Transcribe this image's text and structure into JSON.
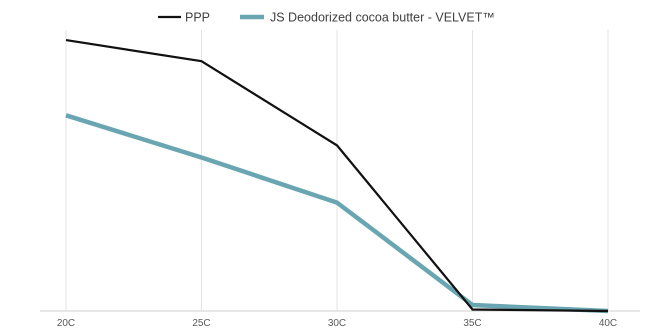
{
  "chart_data": {
    "type": "line",
    "categories": [
      "20C",
      "25C",
      "30C",
      "35C",
      "40C"
    ],
    "ylim": [
      0,
      100
    ],
    "grid": {
      "x": true,
      "y": false
    },
    "legend_position": "top-center",
    "series": [
      {
        "name": "PPP",
        "values": [
          90,
          83,
          55,
          0.5,
          0
        ],
        "color": "#111111"
      },
      {
        "name": "JS Deodorized cocoa butter - VELVET™",
        "values": [
          65,
          51,
          36,
          2,
          0
        ],
        "color": "#6aa6b2"
      }
    ]
  }
}
